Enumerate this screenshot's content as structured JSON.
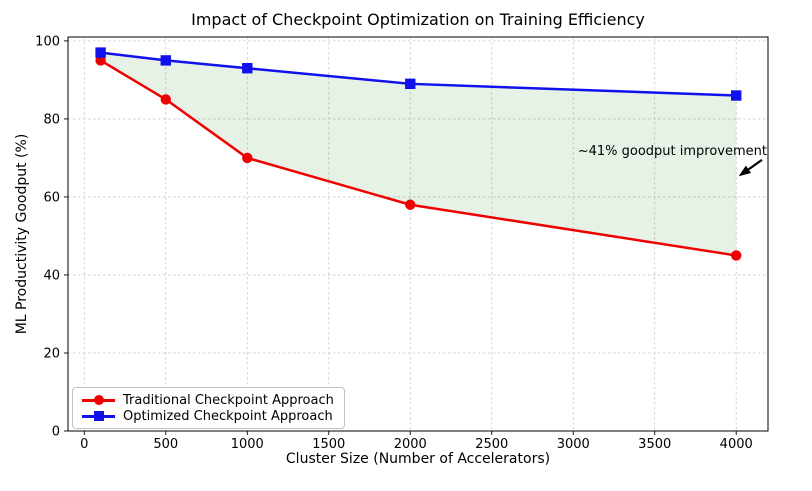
{
  "window": {
    "background": "#ffffff"
  },
  "chart_data": {
    "type": "line",
    "title": "Impact of Checkpoint Optimization on Training Efficiency",
    "xlabel": "Cluster Size (Number of Accelerators)",
    "ylabel": "ML Productivity Goodput (%)",
    "x": [
      100,
      500,
      1000,
      2000,
      4000
    ],
    "series": [
      {
        "name": "Traditional Checkpoint Approach",
        "values": [
          95,
          85,
          70,
          58,
          45
        ],
        "color": "#ee0000",
        "marker": "circle"
      },
      {
        "name": "Optimized Checkpoint Approach",
        "values": [
          97,
          95,
          93,
          89,
          86
        ],
        "color": "#1111ee",
        "marker": "square"
      }
    ],
    "x_ticks": [
      0,
      500,
      1000,
      1500,
      2000,
      2500,
      3000,
      3500,
      4000
    ],
    "y_ticks": [
      0,
      20,
      40,
      60,
      80,
      100
    ],
    "xlim": [
      -100,
      4195
    ],
    "ylim": [
      0,
      101
    ],
    "grid": true,
    "grid_color": "#c9c9c9",
    "axis_color": "#000000",
    "fill_between": {
      "between": [
        "Optimized Checkpoint Approach",
        "Traditional Checkpoint Approach"
      ],
      "color": "#008000",
      "opacity": 0.1
    },
    "legend_position": "lower-left",
    "annotation": {
      "text": "~41% goodput improvement",
      "arrow_tail": [
        4158,
        69.5
      ],
      "arrow_head": [
        4015,
        65.3
      ],
      "color": "#000000"
    }
  }
}
